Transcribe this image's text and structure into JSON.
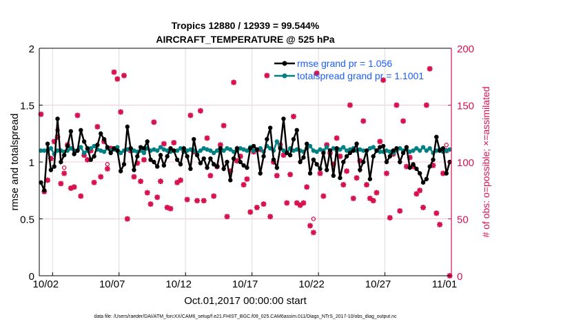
{
  "chart_data": {
    "type": "line",
    "title": [
      "Tropics 12880 / 12939 = 99.544%",
      "AIRCRAFT_TEMPERATURE @ 525 hPa"
    ],
    "xlabel": "Oct.01,2017 00:00:00 start",
    "ylabel": "rmse and totalspread",
    "y2label": "# of obs: o=possible; ×=assimilated",
    "footer": "data file: /Users/raeder/DAI/ATM_forcXX/CAM6_setup/f.e21.FHIST_BGC.f09_025.CAM6assim.011/Diags_NTrS_2017-10/obs_diag_output.nc",
    "xlim": [
      0,
      31
    ],
    "ylim": [
      0,
      2
    ],
    "y2lim": [
      0,
      200
    ],
    "x_ticks": [
      {
        "value": 1,
        "label": "10/02"
      },
      {
        "value": 6,
        "label": "10/07"
      },
      {
        "value": 11,
        "label": "10/12"
      },
      {
        "value": 16,
        "label": "10/17"
      },
      {
        "value": 21,
        "label": "10/22"
      },
      {
        "value": 26,
        "label": "10/27"
      },
      {
        "value": 31,
        "label": "11/01"
      }
    ],
    "y_ticks": [
      {
        "value": 0,
        "label": "0"
      },
      {
        "value": 0.5,
        "label": "0.5"
      },
      {
        "value": 1,
        "label": "1"
      },
      {
        "value": 1.5,
        "label": "1.5"
      },
      {
        "value": 2,
        "label": "2"
      }
    ],
    "y2_ticks": [
      {
        "value": 0,
        "label": "0"
      },
      {
        "value": 50,
        "label": "50"
      },
      {
        "value": 100,
        "label": "100"
      },
      {
        "value": 150,
        "label": "150"
      },
      {
        "value": 200,
        "label": "200"
      }
    ],
    "x_start": 0.125,
    "x_step": 0.25,
    "legend_position": "top-right",
    "series": [
      {
        "name": "rmse",
        "legend": "rmse grand pr = 1.056",
        "color": "#000000",
        "values": [
          0.82,
          0.75,
          1.16,
          0.93,
          0.96,
          1.38,
          1.0,
          1.06,
          1.14,
          1.27,
          1.07,
          1.1,
          1.28,
          1.18,
          1.12,
          1.02,
          1.05,
          1.15,
          1.25,
          1.2,
          1.13,
          1.08,
          1.12,
          1.1,
          0.92,
          0.98,
          1.31,
          1.12,
          0.93,
          1.05,
          1.13,
          1.12,
          1.18,
          1.02,
          1.0,
          0.96,
          1.06,
          0.97,
          1.05,
          1.12,
          1.1,
          1.02,
          0.98,
          1.12,
          1.05,
          0.94,
          1.2,
          1.06,
          0.99,
          1.03,
          0.95,
          1.03,
          0.98,
          0.96,
          1.12,
          0.94,
          1.0,
          0.84,
          1.03,
          1.12,
          1.0,
          0.97,
          0.95,
          1.12,
          1.14,
          1.11,
          0.9,
          1.05,
          1.2,
          1.3,
          1.02,
          0.95,
          1.12,
          1.38,
          1.08,
          1.06,
          1.2,
          1.28,
          1.0,
          1.04,
          1.16,
          0.9,
          1.02,
          0.98,
          0.94,
          1.08,
          0.93,
          1.1,
          0.88,
          1.12,
          0.86,
          1.0,
          1.05,
          1.08,
          1.1,
          1.16,
          0.93,
          1.0,
          1.1,
          0.85,
          1.05,
          1.1,
          1.13,
          1.14,
          1.0,
          1.05,
          1.1,
          1.12,
          1.0,
          1.08,
          1.13,
          0.95,
          0.98,
          0.94,
          0.9,
          0.82,
          0.85,
          0.96,
          1.02,
          1.22,
          1.1,
          1.12,
          0.9,
          1.0
        ]
      },
      {
        "name": "totalspread",
        "legend": "totalspread grand pr = 1.1001",
        "color": "#008080",
        "values": [
          1.1,
          1.1,
          1.1,
          1.12,
          1.07,
          1.1,
          1.1,
          1.09,
          1.1,
          1.12,
          1.1,
          1.1,
          1.13,
          1.08,
          1.1,
          1.12,
          1.14,
          1.11,
          1.1,
          1.09,
          1.12,
          1.1,
          1.11,
          1.13,
          1.08,
          1.1,
          1.11,
          1.12,
          1.1,
          1.09,
          1.1,
          1.08,
          1.12,
          1.1,
          1.11,
          1.1,
          1.13,
          1.11,
          1.1,
          1.09,
          1.1,
          1.1,
          1.12,
          1.09,
          1.1,
          1.11,
          1.1,
          1.08,
          1.1,
          1.12,
          1.11,
          1.1,
          1.08,
          1.1,
          1.11,
          1.1,
          1.12,
          1.11,
          1.09,
          1.1,
          1.12,
          1.11,
          1.1,
          1.13,
          1.1,
          1.11,
          1.12,
          1.09,
          1.14,
          1.12,
          1.1,
          1.18,
          1.13,
          1.1,
          1.08,
          1.12,
          1.1,
          1.11,
          1.1,
          1.09,
          1.12,
          1.14,
          1.1,
          1.09,
          1.11,
          1.1,
          1.13,
          1.1,
          1.12,
          1.1,
          1.11,
          1.13,
          1.1,
          1.11,
          1.12,
          1.1,
          1.11,
          1.1,
          1.1,
          1.12,
          1.13,
          1.1,
          1.09,
          1.09,
          1.1,
          1.09,
          1.08,
          1.1,
          1.12,
          1.1,
          1.11,
          1.09,
          1.1,
          1.12,
          1.1,
          1.13,
          1.1,
          1.12,
          1.08,
          1.1,
          1.11,
          1.09,
          1.1,
          1.11
        ]
      },
      {
        "name": "assimilated",
        "color": "#d6124f",
        "axis": "right",
        "values": [
          142,
          74,
          84,
          103,
          118,
          122,
          81,
          90,
          115,
          77,
          78,
          141,
          70,
          106,
          102,
          110,
          82,
          131,
          87,
          118,
          94,
          112,
          179,
          173,
          144,
          176,
          50,
          110,
          87,
          99,
          83,
          102,
          73,
          63,
          135,
          69,
          83,
          116,
          60,
          59,
          117,
          82,
          84,
          110,
          67,
          141,
          109,
          66,
          145,
          66,
          121,
          88,
          70,
          96,
          115,
          132,
          52,
          92,
          170,
          101,
          105,
          80,
          85,
          56,
          109,
          60,
          111,
          63,
          176,
          52,
          100,
          88,
          115,
          106,
          64,
          89,
          140,
          64,
          62,
          64,
          78,
          44,
          38,
          178,
          90,
          70,
          115,
          108,
          98,
          121,
          105,
          80,
          92,
          150,
          68,
          86,
          101,
          136,
          80,
          68,
          66,
          73,
          118,
          172,
          90,
          51,
          107,
          150,
          57,
          136,
          96,
          104,
          96,
          72,
          75,
          60,
          150,
          182,
          97,
          55,
          45,
          90,
          110,
          0
        ]
      },
      {
        "name": "possible",
        "color": "#d6124f",
        "axis": "right",
        "values": [
          142,
          74,
          84,
          103,
          118,
          128,
          81,
          95,
          115,
          77,
          78,
          141,
          70,
          106,
          102,
          110,
          82,
          131,
          87,
          118,
          98,
          112,
          179,
          173,
          144,
          176,
          50,
          110,
          87,
          99,
          83,
          102,
          73,
          63,
          135,
          69,
          83,
          116,
          60,
          59,
          117,
          82,
          84,
          110,
          67,
          141,
          109,
          66,
          145,
          66,
          121,
          88,
          70,
          96,
          115,
          132,
          52,
          92,
          170,
          101,
          105,
          80,
          85,
          56,
          109,
          60,
          111,
          63,
          176,
          52,
          100,
          88,
          115,
          106,
          64,
          89,
          140,
          64,
          62,
          64,
          78,
          44,
          50,
          178,
          90,
          70,
          115,
          108,
          98,
          121,
          105,
          80,
          92,
          150,
          68,
          86,
          101,
          136,
          80,
          68,
          66,
          73,
          118,
          172,
          90,
          51,
          107,
          150,
          57,
          136,
          96,
          104,
          96,
          72,
          75,
          60,
          150,
          182,
          97,
          55,
          45,
          90,
          115,
          0
        ]
      }
    ]
  }
}
